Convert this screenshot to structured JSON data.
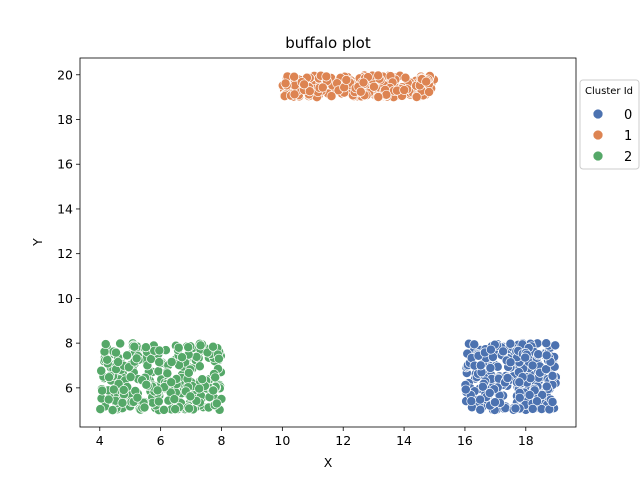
{
  "chart_data": {
    "type": "scatter",
    "title": "buffalo plot",
    "xlabel": "X",
    "ylabel": "Y",
    "xlim": [
      3.35,
      19.65
    ],
    "ylim": [
      4.25,
      20.75
    ],
    "xticks": [
      4,
      6,
      8,
      10,
      12,
      14,
      16,
      18
    ],
    "yticks": [
      6,
      8,
      10,
      12,
      14,
      16,
      18,
      20
    ],
    "grid": false,
    "legend": {
      "title": "Cluster Id",
      "placement": "outside-right-top"
    },
    "colors": [
      "#4c72b0",
      "#dd8452",
      "#55a868"
    ],
    "series": [
      {
        "name": "0",
        "color": "#4c72b0",
        "points_count": 300,
        "x_range": [
          16.0,
          19.0
        ],
        "y_range": [
          5.0,
          8.0
        ]
      },
      {
        "name": "1",
        "color": "#dd8452",
        "points_count": 300,
        "x_range": [
          10.0,
          15.0
        ],
        "y_range": [
          19.0,
          20.0
        ]
      },
      {
        "name": "2",
        "color": "#55a868",
        "points_count": 300,
        "x_range": [
          4.0,
          8.0
        ],
        "y_range": [
          5.0,
          8.0
        ]
      }
    ]
  }
}
